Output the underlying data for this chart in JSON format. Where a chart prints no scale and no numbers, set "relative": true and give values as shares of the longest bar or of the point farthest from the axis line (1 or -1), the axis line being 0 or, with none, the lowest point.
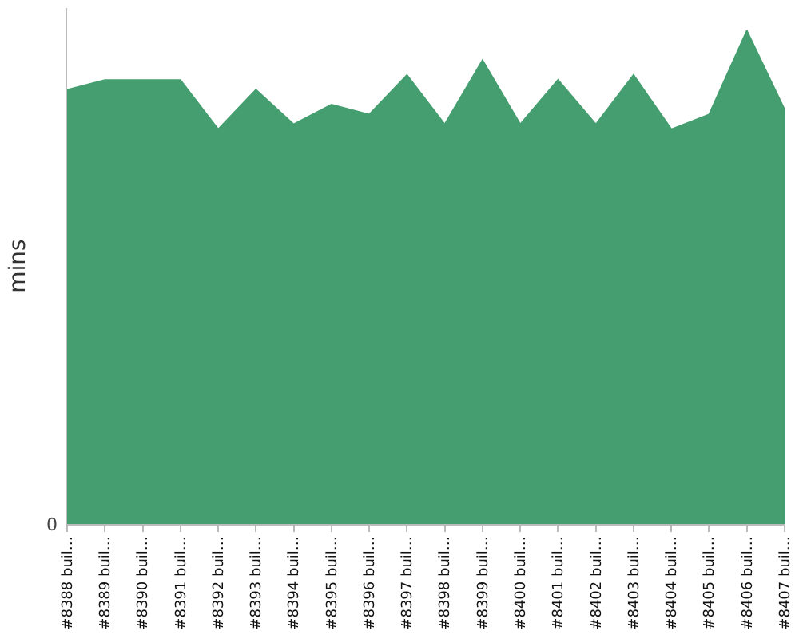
{
  "chart_data": {
    "type": "area",
    "ylabel": "mins",
    "relative": true,
    "grid": false,
    "legend": false,
    "color": "#459e6f",
    "annotations": [
      "0"
    ],
    "categories": [
      "#8388 buil…",
      "#8389 buil…",
      "#8390 buil…",
      "#8391 buil…",
      "#8392 buil…",
      "#8393 buil…",
      "#8394 buil…",
      "#8395 buil…",
      "#8396 buil…",
      "#8397 buil…",
      "#8398 buil…",
      "#8399 buil…",
      "#8400 buil…",
      "#8401 buil…",
      "#8402 buil…",
      "#8403 buil…",
      "#8404 buil…",
      "#8405 buil…",
      "#8406 buil…",
      "#8407 buil…"
    ],
    "values": [
      0.88,
      0.9,
      0.9,
      0.9,
      0.8,
      0.88,
      0.81,
      0.85,
      0.83,
      0.91,
      0.81,
      0.94,
      0.81,
      0.9,
      0.81,
      0.91,
      0.8,
      0.83,
      1,
      0.84
    ]
  }
}
